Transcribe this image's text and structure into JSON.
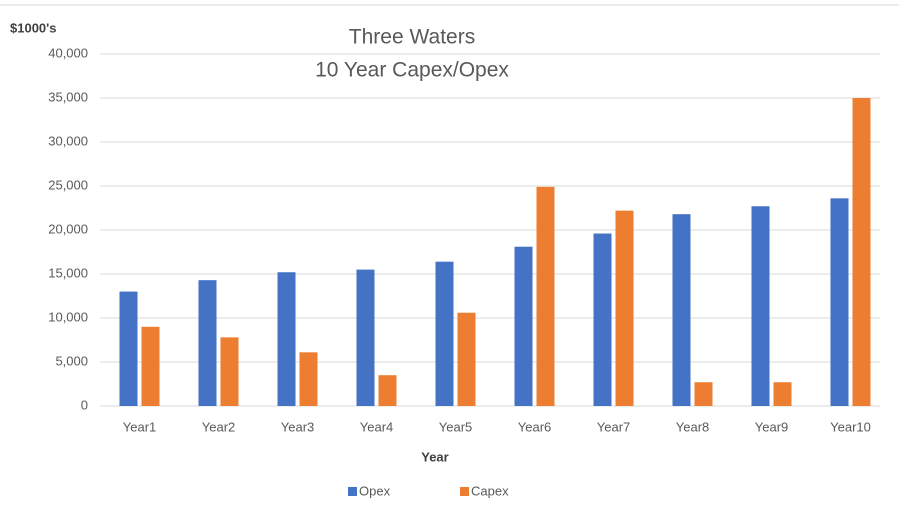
{
  "chart_data": {
    "type": "bar",
    "title": "Three Waters",
    "subtitle": "10 Year Capex/Opex",
    "y_label": "$1000's",
    "x_label": "Year",
    "categories": [
      "Year1",
      "Year2",
      "Year3",
      "Year4",
      "Year5",
      "Year6",
      "Year7",
      "Year8",
      "Year9",
      "Year10"
    ],
    "series": [
      {
        "name": "Opex",
        "color": "#4472c4",
        "values": [
          13000,
          14300,
          15200,
          15500,
          16400,
          18100,
          19600,
          21800,
          22700,
          23600
        ]
      },
      {
        "name": "Capex",
        "color": "#ed7d31",
        "values": [
          9000,
          7800,
          6100,
          3500,
          10600,
          24900,
          22200,
          2700,
          2700,
          35000
        ]
      }
    ],
    "ylim": [
      0,
      40000
    ],
    "yticks": [
      0,
      {
        "value": 5000,
        "label": "5,000"
      },
      {
        "value": 10000,
        "label": "10,000"
      },
      {
        "value": 15000,
        "label": "15,000"
      },
      {
        "value": 20000,
        "label": "20,000"
      },
      {
        "value": 25000,
        "label": "25,000"
      },
      {
        "value": 30000,
        "label": "30,000"
      },
      {
        "value": 35000,
        "label": "35,000"
      },
      {
        "value": 40000,
        "label": "40,000"
      }
    ],
    "grid": true,
    "legend": "bottom"
  }
}
